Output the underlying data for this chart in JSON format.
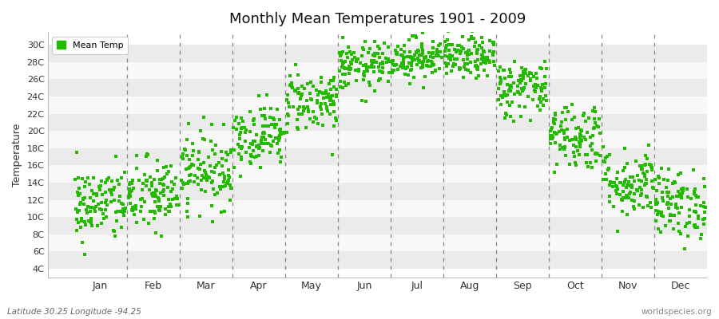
{
  "title": "Monthly Mean Temperatures 1901 - 2009",
  "ylabel": "Temperature",
  "xlabel_bottom_left": "Latitude 30.25 Longitude -94.25",
  "xlabel_bottom_right": "worldspecies.org",
  "legend_label": "Mean Temp",
  "dot_color": "#22BB00",
  "background_color": "#ffffff",
  "plot_bg_color": "#ffffff",
  "band_colors": [
    "#ebebeb",
    "#f8f8f8"
  ],
  "ytick_labels": [
    "4C",
    "6C",
    "8C",
    "10C",
    "12C",
    "14C",
    "16C",
    "18C",
    "20C",
    "22C",
    "24C",
    "26C",
    "28C",
    "30C"
  ],
  "ytick_values": [
    4,
    6,
    8,
    10,
    12,
    14,
    16,
    18,
    20,
    22,
    24,
    26,
    28,
    30
  ],
  "ylim": [
    3.0,
    31.5
  ],
  "month_names": [
    "Jan",
    "Feb",
    "Mar",
    "Apr",
    "May",
    "Jun",
    "Jul",
    "Aug",
    "Sep",
    "Oct",
    "Nov",
    "Dec"
  ],
  "month_centers": [
    0.5,
    1.5,
    2.5,
    3.5,
    4.5,
    5.5,
    6.5,
    7.5,
    8.5,
    9.5,
    10.5,
    11.5
  ],
  "xlim": [
    -0.5,
    12.0
  ],
  "monthly_mean": [
    11.5,
    12.5,
    15.5,
    19.5,
    23.5,
    27.5,
    28.5,
    28.5,
    25.0,
    19.5,
    14.0,
    11.5
  ],
  "monthly_std": [
    2.2,
    2.2,
    2.2,
    1.8,
    1.8,
    1.4,
    1.2,
    1.2,
    1.7,
    2.0,
    2.0,
    2.0
  ],
  "n_years": 109,
  "seed": 42,
  "marker_size": 5,
  "dpi": 100,
  "figsize": [
    9.0,
    4.0
  ],
  "vline_color": "#888888",
  "vline_positions": [
    1.0,
    2.0,
    3.0,
    4.0,
    5.0,
    6.0,
    7.0,
    8.0,
    9.0,
    10.0,
    11.0
  ]
}
